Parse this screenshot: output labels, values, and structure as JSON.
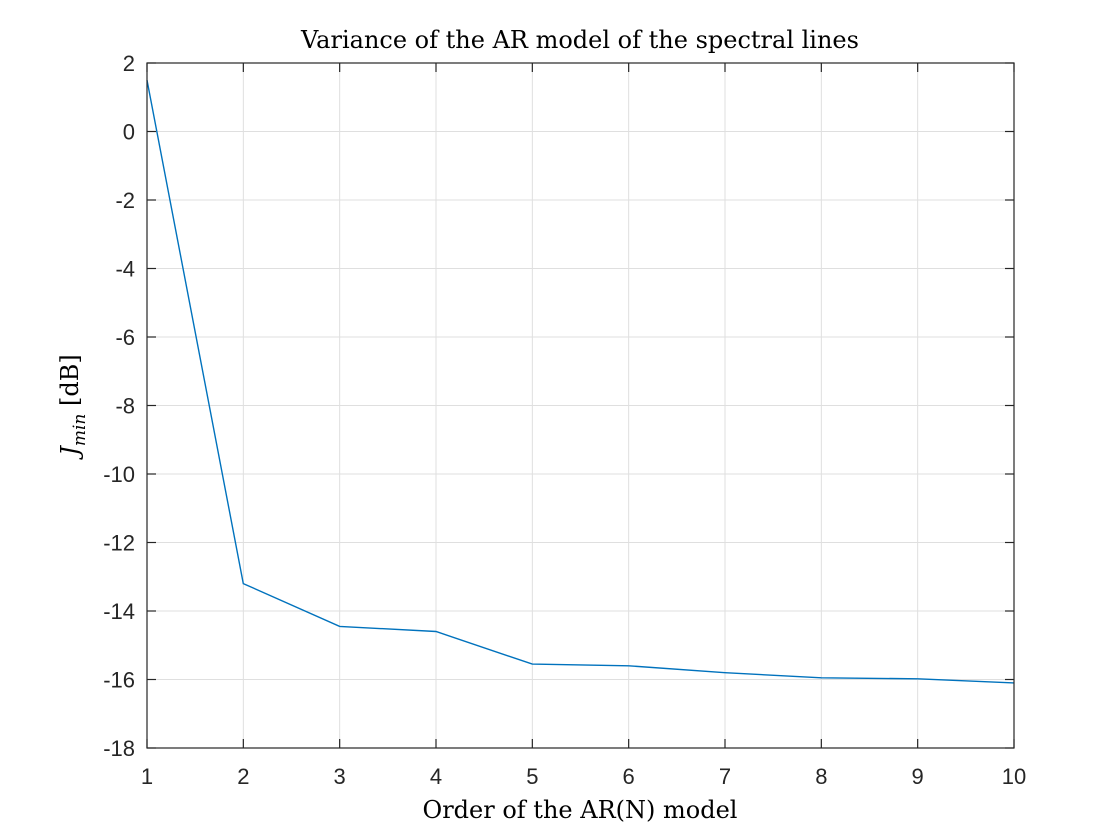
{
  "chart_data": {
    "type": "line",
    "title": "Variance of the AR model of the spectral lines",
    "xlabel": "Order of the AR(N) model",
    "ylabel": {
      "main": "J",
      "subscript": "min",
      "unit": " [dB]"
    },
    "xlim": [
      1,
      10
    ],
    "ylim": [
      -18,
      2
    ],
    "xticks": [
      1,
      2,
      3,
      4,
      5,
      6,
      7,
      8,
      9,
      10
    ],
    "yticks": [
      2,
      0,
      -2,
      -4,
      -6,
      -8,
      -10,
      -12,
      -14,
      -16,
      -18
    ],
    "grid": true,
    "x": [
      1,
      2,
      3,
      4,
      5,
      6,
      7,
      8,
      9,
      10
    ],
    "series": [
      {
        "color": "#0072BD",
        "values": [
          1.5,
          -13.2,
          -14.45,
          -14.6,
          -15.55,
          -15.6,
          -15.8,
          -15.95,
          -15.98,
          -16.1
        ]
      }
    ]
  }
}
